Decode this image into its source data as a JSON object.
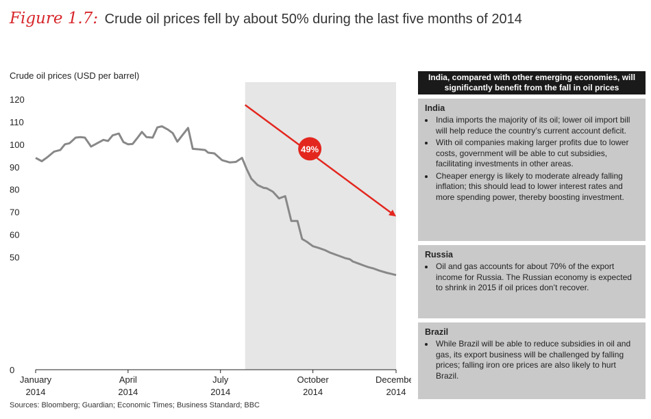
{
  "figure": {
    "label": "Figure 1.7:",
    "title": "Crude oil prices fell by about 50% during the last five months of 2014"
  },
  "sources": "Sources: Bloomberg; Guardian; Economic Times; Business Standard; BBC",
  "colors": {
    "line": "#888888",
    "highlight_band": "#e6e6e6",
    "arrow": "#e3271f",
    "panel_bg": "#c9c9c9",
    "panel_header_bg": "#1a1a1a"
  },
  "chart_data": {
    "type": "line",
    "ylabel": "Crude oil prices (USD per barrel)",
    "xlabel": "",
    "ylim": [
      0,
      120
    ],
    "yticks": [
      0,
      50,
      60,
      70,
      80,
      90,
      100,
      110,
      120
    ],
    "xlim": [
      0,
      11.7
    ],
    "xticks": [
      {
        "value": 0,
        "line1": "January",
        "line2": "2014"
      },
      {
        "value": 3,
        "line1": "April",
        "line2": "2014"
      },
      {
        "value": 6,
        "line1": "July",
        "line2": "2014"
      },
      {
        "value": 9,
        "line1": "October",
        "line2": "2014"
      },
      {
        "value": 11.7,
        "line1": "December",
        "line2": "2014"
      }
    ],
    "highlight_range": [
      6.8,
      11.7
    ],
    "annotation": {
      "label": "49%",
      "x": 8.9,
      "y": 98,
      "arrow_from": [
        6.8,
        117.5
      ],
      "arrow_to": [
        11.7,
        68
      ]
    },
    "series": [
      {
        "name": "Crude oil price",
        "x": [
          0.0,
          0.2,
          0.4,
          0.6,
          0.8,
          0.95,
          1.1,
          1.3,
          1.45,
          1.6,
          1.8,
          2.0,
          2.2,
          2.35,
          2.5,
          2.7,
          2.85,
          3.0,
          3.15,
          3.3,
          3.45,
          3.6,
          3.8,
          3.95,
          4.1,
          4.3,
          4.45,
          4.6,
          4.75,
          4.95,
          5.1,
          5.3,
          5.5,
          5.6,
          5.8,
          6.05,
          6.3,
          6.5,
          6.7,
          6.85,
          7.0,
          7.2,
          7.4,
          7.5,
          7.7,
          7.9,
          8.1,
          8.3,
          8.5,
          8.65,
          8.8,
          9.0,
          9.2,
          9.4,
          9.55,
          9.75,
          9.95,
          10.05,
          10.2,
          10.3,
          10.5,
          10.7,
          10.8,
          10.95,
          11.15,
          11.4,
          11.55,
          11.7
        ],
        "values": [
          94,
          92.5,
          94.5,
          96.8,
          97.5,
          100,
          100.5,
          103,
          103.2,
          103,
          99,
          100.5,
          102,
          101.5,
          104,
          104.8,
          101,
          100,
          100.2,
          102.8,
          105.5,
          103.2,
          103,
          107.5,
          108,
          106.5,
          105,
          101.2,
          103.8,
          107.3,
          98,
          97.8,
          97.5,
          96.3,
          96,
          93,
          92,
          92.2,
          94,
          89,
          84.8,
          82,
          80.7,
          80.5,
          79,
          76,
          77,
          66,
          66,
          58,
          56.8,
          54.8,
          54,
          53,
          52,
          51,
          50,
          49.5,
          49,
          48,
          47,
          46,
          45.5,
          45,
          44,
          43,
          42.5,
          42
        ]
      }
    ]
  },
  "panel": {
    "header": "India, compared with other emerging economies, will significantly benefit from the fall in oil prices",
    "sections": [
      {
        "title": "India",
        "bullets": [
          "India imports the majority of its oil; lower oil import bill will help reduce the country’s current account deficit.",
          "With oil companies making larger profits due to lower costs, government will be able to cut subsidies, facilitating investments in other areas.",
          "Cheaper energy is likely to moderate already falling inflation; this should lead to lower interest rates and more spending power, thereby boosting investment."
        ]
      },
      {
        "title": "Russia",
        "bullets": [
          "Oil and gas accounts for about 70% of the export income for Russia. The Russian economy is expected to shrink in 2015 if oil prices don’t recover."
        ]
      },
      {
        "title": "Brazil",
        "bullets": [
          "While Brazil will be able to reduce subsidies in oil and gas, its export business will be challenged by falling prices; falling iron ore prices are also likely to hurt Brazil."
        ]
      }
    ]
  }
}
